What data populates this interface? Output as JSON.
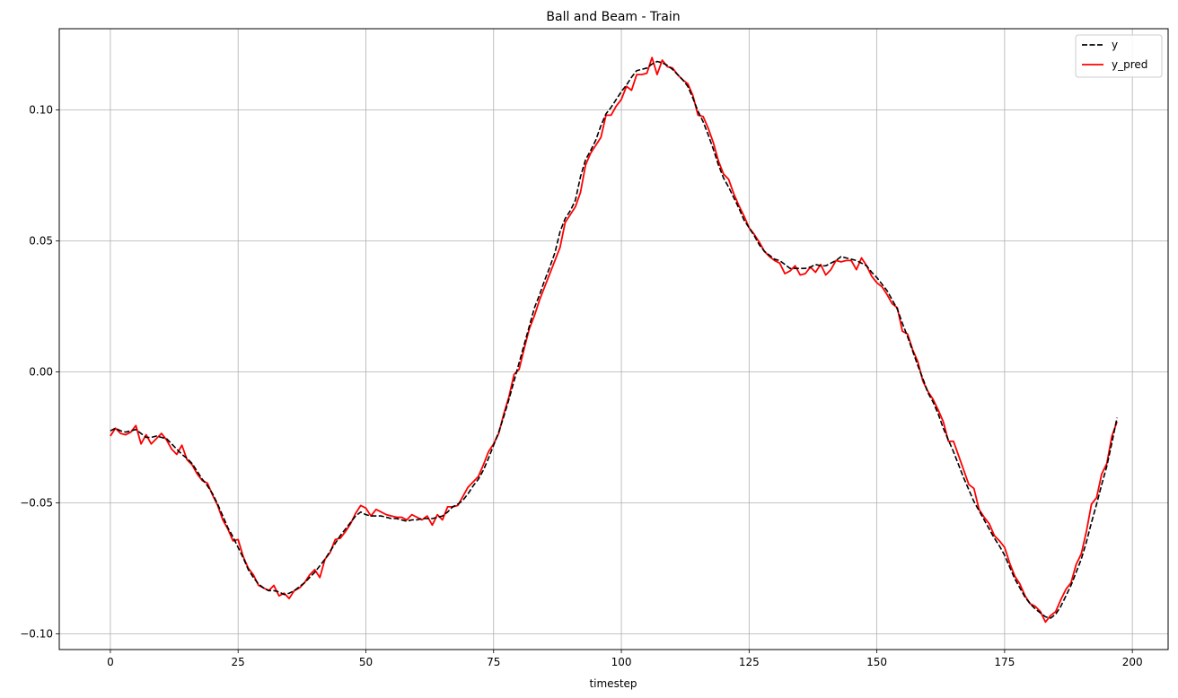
{
  "chart_data": {
    "type": "line",
    "title": "Ball and Beam - Train",
    "xlabel": "timestep",
    "ylabel": "",
    "xlim": [
      -10,
      207
    ],
    "ylim": [
      -0.106,
      0.131
    ],
    "xticks": [
      0,
      25,
      50,
      75,
      100,
      125,
      150,
      175,
      200
    ],
    "xtick_labels": [
      "0",
      "25",
      "50",
      "75",
      "100",
      "125",
      "150",
      "175",
      "200"
    ],
    "yticks": [
      -0.1,
      -0.05,
      0.0,
      0.05,
      0.1
    ],
    "ytick_labels": [
      "−0.10",
      "−0.05",
      "0.00",
      "0.05",
      "0.10"
    ],
    "grid": true,
    "legend_position": "top-right",
    "x_start": 0,
    "series": [
      {
        "name": "y",
        "color": "#000000",
        "style": "dashed",
        "values": [
          -0.0225,
          -0.0215,
          -0.0225,
          -0.023,
          -0.0225,
          -0.022,
          -0.0235,
          -0.025,
          -0.025,
          -0.0245,
          -0.025,
          -0.0255,
          -0.0275,
          -0.0295,
          -0.0315,
          -0.033,
          -0.035,
          -0.038,
          -0.041,
          -0.0435,
          -0.0465,
          -0.0505,
          -0.055,
          -0.0595,
          -0.063,
          -0.067,
          -0.071,
          -0.0755,
          -0.0785,
          -0.081,
          -0.0825,
          -0.0835,
          -0.0835,
          -0.084,
          -0.085,
          -0.0845,
          -0.0835,
          -0.082,
          -0.0805,
          -0.0785,
          -0.0765,
          -0.074,
          -0.0715,
          -0.0685,
          -0.0655,
          -0.0625,
          -0.06,
          -0.0575,
          -0.055,
          -0.0535,
          -0.0545,
          -0.055,
          -0.055,
          -0.055,
          -0.0555,
          -0.056,
          -0.056,
          -0.0565,
          -0.057,
          -0.0565,
          -0.0565,
          -0.056,
          -0.056,
          -0.056,
          -0.0555,
          -0.055,
          -0.0535,
          -0.0515,
          -0.0505,
          -0.049,
          -0.0465,
          -0.0435,
          -0.041,
          -0.0375,
          -0.033,
          -0.028,
          -0.023,
          -0.017,
          -0.0105,
          -0.0035,
          0.0035,
          0.0105,
          0.0175,
          0.0245,
          0.0295,
          0.035,
          0.04,
          0.0455,
          0.0535,
          0.0585,
          0.0615,
          0.0655,
          0.0745,
          0.081,
          0.0845,
          0.0885,
          0.094,
          0.0985,
          0.101,
          0.104,
          0.107,
          0.1095,
          0.1125,
          0.115,
          0.1155,
          0.116,
          0.1175,
          0.1185,
          0.118,
          0.117,
          0.1155,
          0.1135,
          0.1115,
          0.109,
          0.1045,
          0.0995,
          0.0955,
          0.0905,
          0.085,
          0.079,
          0.074,
          0.0705,
          0.0665,
          0.0625,
          0.058,
          0.055,
          0.052,
          0.0485,
          0.046,
          0.0445,
          0.043,
          0.0425,
          0.041,
          0.0395,
          0.0395,
          0.0395,
          0.0395,
          0.04,
          0.041,
          0.0405,
          0.0405,
          0.0415,
          0.0425,
          0.044,
          0.0435,
          0.043,
          0.0425,
          0.0415,
          0.0405,
          0.038,
          0.036,
          0.0335,
          0.031,
          0.0275,
          0.024,
          0.0185,
          0.0135,
          0.008,
          0.0025,
          -0.0025,
          -0.008,
          -0.0115,
          -0.016,
          -0.0215,
          -0.026,
          -0.0305,
          -0.0355,
          -0.0405,
          -0.045,
          -0.0495,
          -0.053,
          -0.0565,
          -0.06,
          -0.0635,
          -0.0665,
          -0.07,
          -0.0745,
          -0.079,
          -0.0825,
          -0.086,
          -0.0885,
          -0.0905,
          -0.092,
          -0.0935,
          -0.094,
          -0.0925,
          -0.0895,
          -0.0855,
          -0.0815,
          -0.0765,
          -0.0715,
          -0.065,
          -0.0575,
          -0.0505,
          -0.043,
          -0.036,
          -0.027,
          -0.0175
        ]
      },
      {
        "name": "y_pred",
        "color": "#ff0000",
        "style": "solid",
        "values": [
          -0.0245,
          -0.0215,
          -0.0235,
          -0.024,
          -0.023,
          -0.0205,
          -0.0275,
          -0.024,
          -0.0275,
          -0.0255,
          -0.0235,
          -0.026,
          -0.0295,
          -0.0315,
          -0.028,
          -0.0335,
          -0.0355,
          -0.039,
          -0.0415,
          -0.0425,
          -0.047,
          -0.051,
          -0.0565,
          -0.06,
          -0.0645,
          -0.064,
          -0.0705,
          -0.075,
          -0.0775,
          -0.0815,
          -0.0825,
          -0.0835,
          -0.0815,
          -0.0855,
          -0.0845,
          -0.0865,
          -0.0835,
          -0.0825,
          -0.0805,
          -0.0775,
          -0.0755,
          -0.0785,
          -0.0715,
          -0.069,
          -0.064,
          -0.0635,
          -0.061,
          -0.058,
          -0.054,
          -0.051,
          -0.052,
          -0.055,
          -0.0525,
          -0.0535,
          -0.0545,
          -0.055,
          -0.0555,
          -0.0555,
          -0.0565,
          -0.0545,
          -0.0555,
          -0.0565,
          -0.055,
          -0.0585,
          -0.0545,
          -0.0565,
          -0.0515,
          -0.0515,
          -0.051,
          -0.0475,
          -0.044,
          -0.042,
          -0.04,
          -0.0355,
          -0.0305,
          -0.0275,
          -0.0235,
          -0.016,
          -0.0095,
          -0.001,
          0.001,
          0.009,
          0.0165,
          0.0215,
          0.0275,
          0.0325,
          0.0375,
          0.0425,
          0.0475,
          0.057,
          0.06,
          0.063,
          0.0685,
          0.079,
          0.0835,
          0.0865,
          0.0895,
          0.098,
          0.098,
          0.1015,
          0.104,
          0.109,
          0.1075,
          0.1135,
          0.1135,
          0.114,
          0.12,
          0.1135,
          0.119,
          0.1165,
          0.116,
          0.1135,
          0.1115,
          0.11,
          0.1055,
          0.098,
          0.0975,
          0.093,
          0.0875,
          0.0805,
          0.0755,
          0.0735,
          0.068,
          0.0635,
          0.0595,
          0.055,
          0.0525,
          0.0495,
          0.046,
          0.044,
          0.0425,
          0.0415,
          0.0375,
          0.0385,
          0.0405,
          0.037,
          0.0375,
          0.04,
          0.038,
          0.041,
          0.037,
          0.039,
          0.0425,
          0.042,
          0.0425,
          0.0425,
          0.039,
          0.0435,
          0.0405,
          0.0365,
          0.034,
          0.0325,
          0.0295,
          0.026,
          0.0245,
          0.0155,
          0.0145,
          0.0085,
          0.004,
          -0.0035,
          -0.0075,
          -0.0105,
          -0.0145,
          -0.019,
          -0.0265,
          -0.0265,
          -0.032,
          -0.0375,
          -0.043,
          -0.0445,
          -0.0525,
          -0.0555,
          -0.058,
          -0.0625,
          -0.0645,
          -0.067,
          -0.073,
          -0.078,
          -0.081,
          -0.0855,
          -0.0885,
          -0.0895,
          -0.0915,
          -0.0955,
          -0.093,
          -0.0915,
          -0.087,
          -0.083,
          -0.0805,
          -0.0735,
          -0.0695,
          -0.061,
          -0.0505,
          -0.048,
          -0.039,
          -0.035,
          -0.0245,
          -0.019
        ]
      }
    ]
  }
}
